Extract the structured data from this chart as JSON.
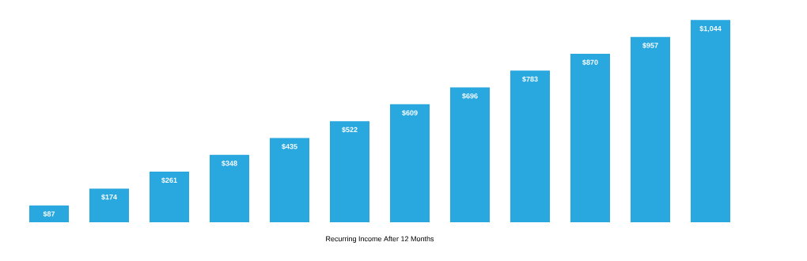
{
  "chart_data": {
    "type": "bar",
    "xlabel": "Recurring Income After 12 Months",
    "categories": [
      null,
      null,
      null,
      null,
      null,
      null,
      null,
      null,
      null,
      null,
      null,
      null
    ],
    "values": [
      87,
      174,
      261,
      348,
      435,
      522,
      609,
      696,
      783,
      870,
      957,
      1044
    ],
    "value_labels": [
      "$87",
      "$174",
      "$261",
      "$348",
      "$435",
      "$522",
      "$609",
      "$696",
      "$783",
      "$870",
      "$957",
      "$1,044"
    ],
    "color": "#29a8e0"
  }
}
